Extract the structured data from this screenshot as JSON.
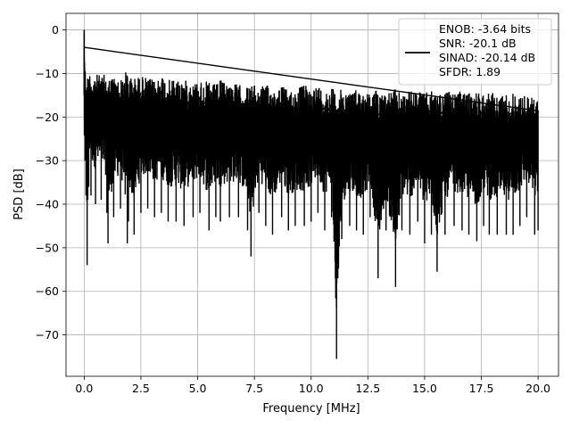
{
  "chart_data": {
    "type": "line",
    "xlabel": "Frequency [MHz]",
    "ylabel": "PSD [dB]",
    "xlim": [
      -0.8,
      20.9
    ],
    "ylim": [
      -79.5,
      3.8
    ],
    "xticks": [
      0.0,
      2.5,
      5.0,
      7.5,
      10.0,
      12.5,
      15.0,
      17.5,
      20.0
    ],
    "xtick_labels": [
      "0.0",
      "2.5",
      "5.0",
      "7.5",
      "10.0",
      "12.5",
      "15.0",
      "17.5",
      "20.0"
    ],
    "yticks": [
      0,
      -10,
      -20,
      -30,
      -40,
      -50,
      -60,
      -70
    ],
    "ytick_labels": [
      "0",
      "−10",
      "−20",
      "−30",
      "−40",
      "−50",
      "−60",
      "−70"
    ],
    "grid": true,
    "legend_position": "top-right",
    "legend_lines": [
      "ENOB: -3.64 bits",
      "SNR: -20.1 dB",
      "SINAD: -20.14 dB",
      "SFDR: 1.89"
    ],
    "line_color": "#000000",
    "series": [
      {
        "x": [
          0.0,
          0.04,
          0.08,
          0.13,
          0.16,
          0.2,
          0.3,
          0.5,
          0.75,
          1.0,
          1.05,
          1.3,
          1.6,
          1.9,
          1.95,
          2.2,
          2.5,
          2.8,
          3.1,
          3.4,
          3.7,
          4.05,
          4.4,
          4.8,
          5.1,
          5.5,
          5.8,
          6.0,
          6.4,
          6.8,
          7.2,
          7.35,
          7.7,
          8.0,
          8.3,
          8.7,
          9.0,
          9.3,
          9.7,
          10.0,
          10.3,
          10.6,
          10.9,
          11.12,
          11.35,
          11.7,
          12.0,
          12.3,
          12.6,
          12.95,
          13.3,
          13.72,
          14.0,
          14.35,
          14.7,
          15.0,
          15.3,
          15.55,
          15.9,
          16.3,
          16.65,
          16.95,
          17.3,
          17.6,
          17.85,
          18.2,
          18.6,
          18.9,
          19.2,
          19.5,
          19.85,
          20.0
        ],
        "y_upper": [
          0.0,
          -8,
          -10,
          -12,
          -10,
          -9,
          -10,
          -10,
          -10.5,
          -10,
          -11,
          -10.5,
          -11.5,
          -9,
          -10.5,
          -11,
          -10.5,
          -11,
          -11.5,
          -10,
          -11.5,
          -11,
          -11.5,
          -12,
          -11.5,
          -12,
          -12.5,
          -11.5,
          -12,
          -12.5,
          -13,
          -12.5,
          -13,
          -12.5,
          -13.5,
          -12.5,
          -14,
          -13.5,
          -12.5,
          -13.5,
          -12.5,
          -14,
          -13,
          -14.5,
          -13.5,
          -14,
          -13.5,
          -14,
          -14.5,
          -13.5,
          -14.5,
          -13.5,
          -14.5,
          -14,
          -14,
          -14.5,
          -14,
          -14.5,
          -14,
          -14.5,
          -14,
          -14.5,
          -14,
          -14.5,
          -14,
          -15,
          -14.5,
          -14.5,
          -15,
          -15,
          -15.5,
          -16
        ],
        "y_lower": [
          -15,
          -30,
          -38,
          -54,
          -39,
          -36,
          -38,
          -40,
          -39,
          -42,
          -49,
          -43,
          -41,
          -49,
          -44,
          -47,
          -42,
          -41,
          -43,
          -42,
          -44,
          -44,
          -45,
          -43,
          -42,
          -46,
          -43,
          -44,
          -43,
          -43,
          -46,
          -52,
          -42,
          -45,
          -47,
          -43,
          -46,
          -45,
          -45,
          -44,
          -42,
          -46,
          -43,
          -75.5,
          -48,
          -45,
          -46,
          -47,
          -43,
          -57,
          -46,
          -59,
          -46,
          -47,
          -44,
          -49,
          -47,
          -55.5,
          -47,
          -45,
          -46,
          -47,
          -48.5,
          -45,
          -47,
          -47,
          -47,
          -47,
          -45,
          -43,
          -47,
          -46
        ]
      }
    ]
  }
}
